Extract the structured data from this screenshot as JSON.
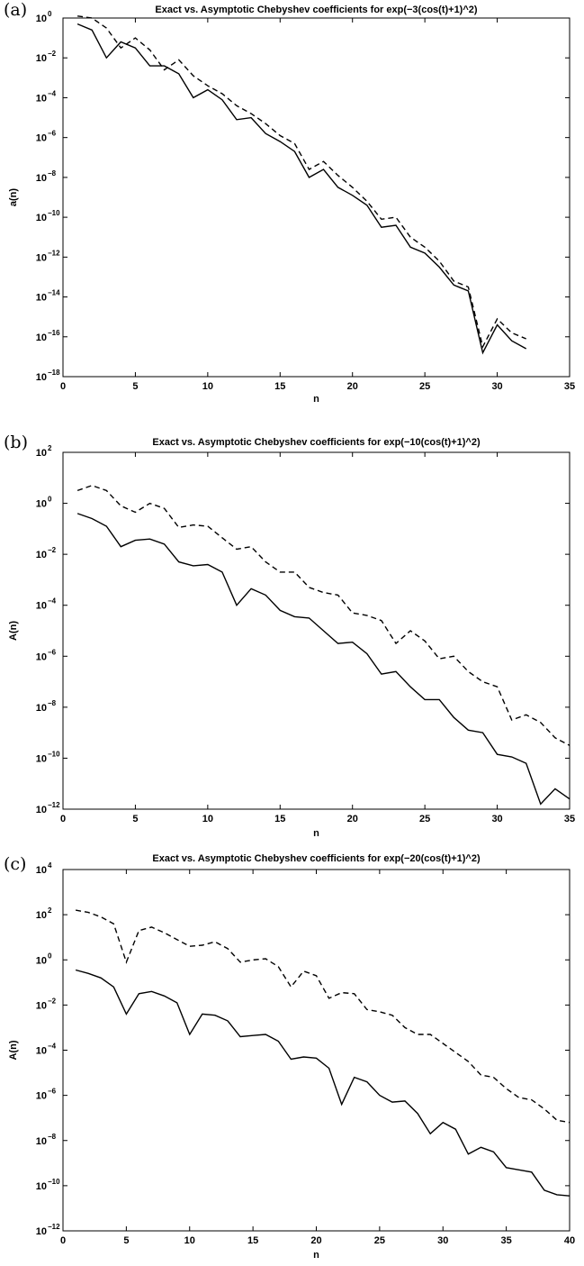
{
  "chart_data": [
    {
      "type": "line",
      "panel_label": "(a)",
      "title": "Exact vs. Asymptotic Chebyshev coefficients for exp(−3(cos(t)+1)^2)",
      "xlabel": "n",
      "ylabel": "a(n)",
      "xlim": [
        0,
        35
      ],
      "ylim_log10": [
        -18,
        0
      ],
      "yscale": "log",
      "x_ticks": [
        0,
        5,
        10,
        15,
        20,
        25,
        30,
        35
      ],
      "y_tick_exponents": [
        -18,
        -16,
        -14,
        -12,
        -10,
        -8,
        -6,
        -4,
        -2,
        0
      ],
      "grid": false,
      "x": [
        1,
        2,
        3,
        4,
        5,
        6,
        7,
        8,
        9,
        10,
        11,
        12,
        13,
        14,
        15,
        16,
        17,
        18,
        19,
        20,
        21,
        22,
        23,
        24,
        25,
        26,
        27,
        28,
        29,
        30,
        31,
        32
      ],
      "series": [
        {
          "style": "solid",
          "log10_values": [
            -0.3,
            -0.6,
            -2.0,
            -1.2,
            -1.5,
            -2.4,
            -2.4,
            -2.8,
            -4.0,
            -3.6,
            -4.1,
            -5.1,
            -5.0,
            -5.8,
            -6.2,
            -6.7,
            -8.0,
            -7.6,
            -8.5,
            -8.9,
            -9.4,
            -10.5,
            -10.4,
            -11.5,
            -11.8,
            -12.5,
            -13.4,
            -13.7,
            -16.8,
            -15.4,
            -16.2,
            -16.6
          ]
        },
        {
          "style": "dashed",
          "log10_values": [
            0.1,
            0.0,
            -0.5,
            -1.5,
            -1.0,
            -1.6,
            -2.6,
            -2.1,
            -2.9,
            -3.4,
            -3.8,
            -4.4,
            -4.8,
            -5.3,
            -5.9,
            -6.3,
            -7.6,
            -7.2,
            -7.9,
            -8.5,
            -9.2,
            -10.1,
            -10.0,
            -11.0,
            -11.5,
            -12.2,
            -13.2,
            -13.5,
            -16.5,
            -15.1,
            -15.8,
            -16.1
          ]
        }
      ]
    },
    {
      "type": "line",
      "panel_label": "(b)",
      "title": "Exact vs. Asymptotic Chebyshev coefficients for exp(−10(cos(t)+1)^2)",
      "xlabel": "n",
      "ylabel": "A(n)",
      "xlim": [
        0,
        35
      ],
      "ylim_log10": [
        -12,
        2
      ],
      "yscale": "log",
      "x_ticks": [
        0,
        5,
        10,
        15,
        20,
        25,
        30,
        35
      ],
      "y_tick_exponents": [
        -12,
        -10,
        -8,
        -6,
        -4,
        -2,
        0,
        2
      ],
      "grid": false,
      "x": [
        1,
        2,
        3,
        4,
        5,
        6,
        7,
        8,
        9,
        10,
        11,
        12,
        13,
        14,
        15,
        16,
        17,
        18,
        19,
        20,
        21,
        22,
        23,
        24,
        25,
        26,
        27,
        28,
        29,
        30,
        31,
        32,
        33,
        34,
        35
      ],
      "series": [
        {
          "style": "solid",
          "log10_values": [
            -0.4,
            -0.6,
            -0.9,
            -1.7,
            -1.45,
            -1.4,
            -1.6,
            -2.3,
            -2.45,
            -2.4,
            -2.7,
            -4.0,
            -3.35,
            -3.6,
            -4.2,
            -4.45,
            -4.5,
            -5.0,
            -5.5,
            -5.45,
            -5.9,
            -6.7,
            -6.6,
            -7.2,
            -7.7,
            -7.7,
            -8.4,
            -8.9,
            -9.0,
            -9.85,
            -9.95,
            -10.2,
            -11.8,
            -11.2,
            -11.6
          ]
        },
        {
          "style": "dashed",
          "log10_values": [
            0.5,
            0.7,
            0.5,
            -0.1,
            -0.35,
            0.0,
            -0.2,
            -0.95,
            -0.85,
            -0.9,
            -1.35,
            -1.8,
            -1.7,
            -2.3,
            -2.7,
            -2.7,
            -3.3,
            -3.5,
            -3.6,
            -4.3,
            -4.4,
            -4.6,
            -5.5,
            -5.0,
            -5.4,
            -6.1,
            -6.0,
            -6.6,
            -7.0,
            -7.2,
            -8.5,
            -8.3,
            -8.6,
            -9.2,
            -9.5
          ]
        }
      ]
    },
    {
      "type": "line",
      "panel_label": "(c)",
      "title": "Exact vs. Asymptotic Chebyshev coefficients for exp(−20(cos(t)+1)^2)",
      "xlabel": "n",
      "ylabel": "A(n)",
      "xlim": [
        0,
        40
      ],
      "ylim_log10": [
        -12,
        4
      ],
      "yscale": "log",
      "x_ticks": [
        0,
        5,
        10,
        15,
        20,
        25,
        30,
        35,
        40
      ],
      "y_tick_exponents": [
        -12,
        -10,
        -8,
        -6,
        -4,
        -2,
        0,
        2,
        4
      ],
      "grid": false,
      "x": [
        1,
        2,
        3,
        4,
        5,
        6,
        7,
        8,
        9,
        10,
        11,
        12,
        13,
        14,
        15,
        16,
        17,
        18,
        19,
        20,
        21,
        22,
        23,
        24,
        25,
        26,
        27,
        28,
        29,
        30,
        31,
        32,
        33,
        34,
        35,
        36,
        37,
        38,
        39,
        40
      ],
      "series": [
        {
          "style": "solid",
          "log10_values": [
            -0.45,
            -0.6,
            -0.8,
            -1.2,
            -2.4,
            -1.5,
            -1.4,
            -1.6,
            -1.9,
            -3.3,
            -2.4,
            -2.45,
            -2.7,
            -3.4,
            -3.35,
            -3.3,
            -3.6,
            -4.4,
            -4.3,
            -4.35,
            -4.8,
            -6.4,
            -5.2,
            -5.4,
            -6.0,
            -6.3,
            -6.25,
            -6.8,
            -7.7,
            -7.2,
            -7.5,
            -8.6,
            -8.3,
            -8.5,
            -9.2,
            -9.3,
            -9.4,
            -10.2,
            -10.4,
            -10.45
          ]
        },
        {
          "style": "dashed",
          "log10_values": [
            2.2,
            2.1,
            1.9,
            1.6,
            -0.1,
            1.3,
            1.45,
            1.2,
            0.9,
            0.6,
            0.65,
            0.8,
            0.5,
            -0.1,
            0.0,
            0.05,
            -0.3,
            -1.2,
            -0.5,
            -0.7,
            -1.7,
            -1.45,
            -1.5,
            -2.2,
            -2.3,
            -2.45,
            -3.0,
            -3.3,
            -3.3,
            -3.7,
            -4.1,
            -4.5,
            -5.1,
            -5.2,
            -5.7,
            -6.1,
            -6.2,
            -6.6,
            -7.1,
            -7.2
          ]
        }
      ]
    }
  ]
}
